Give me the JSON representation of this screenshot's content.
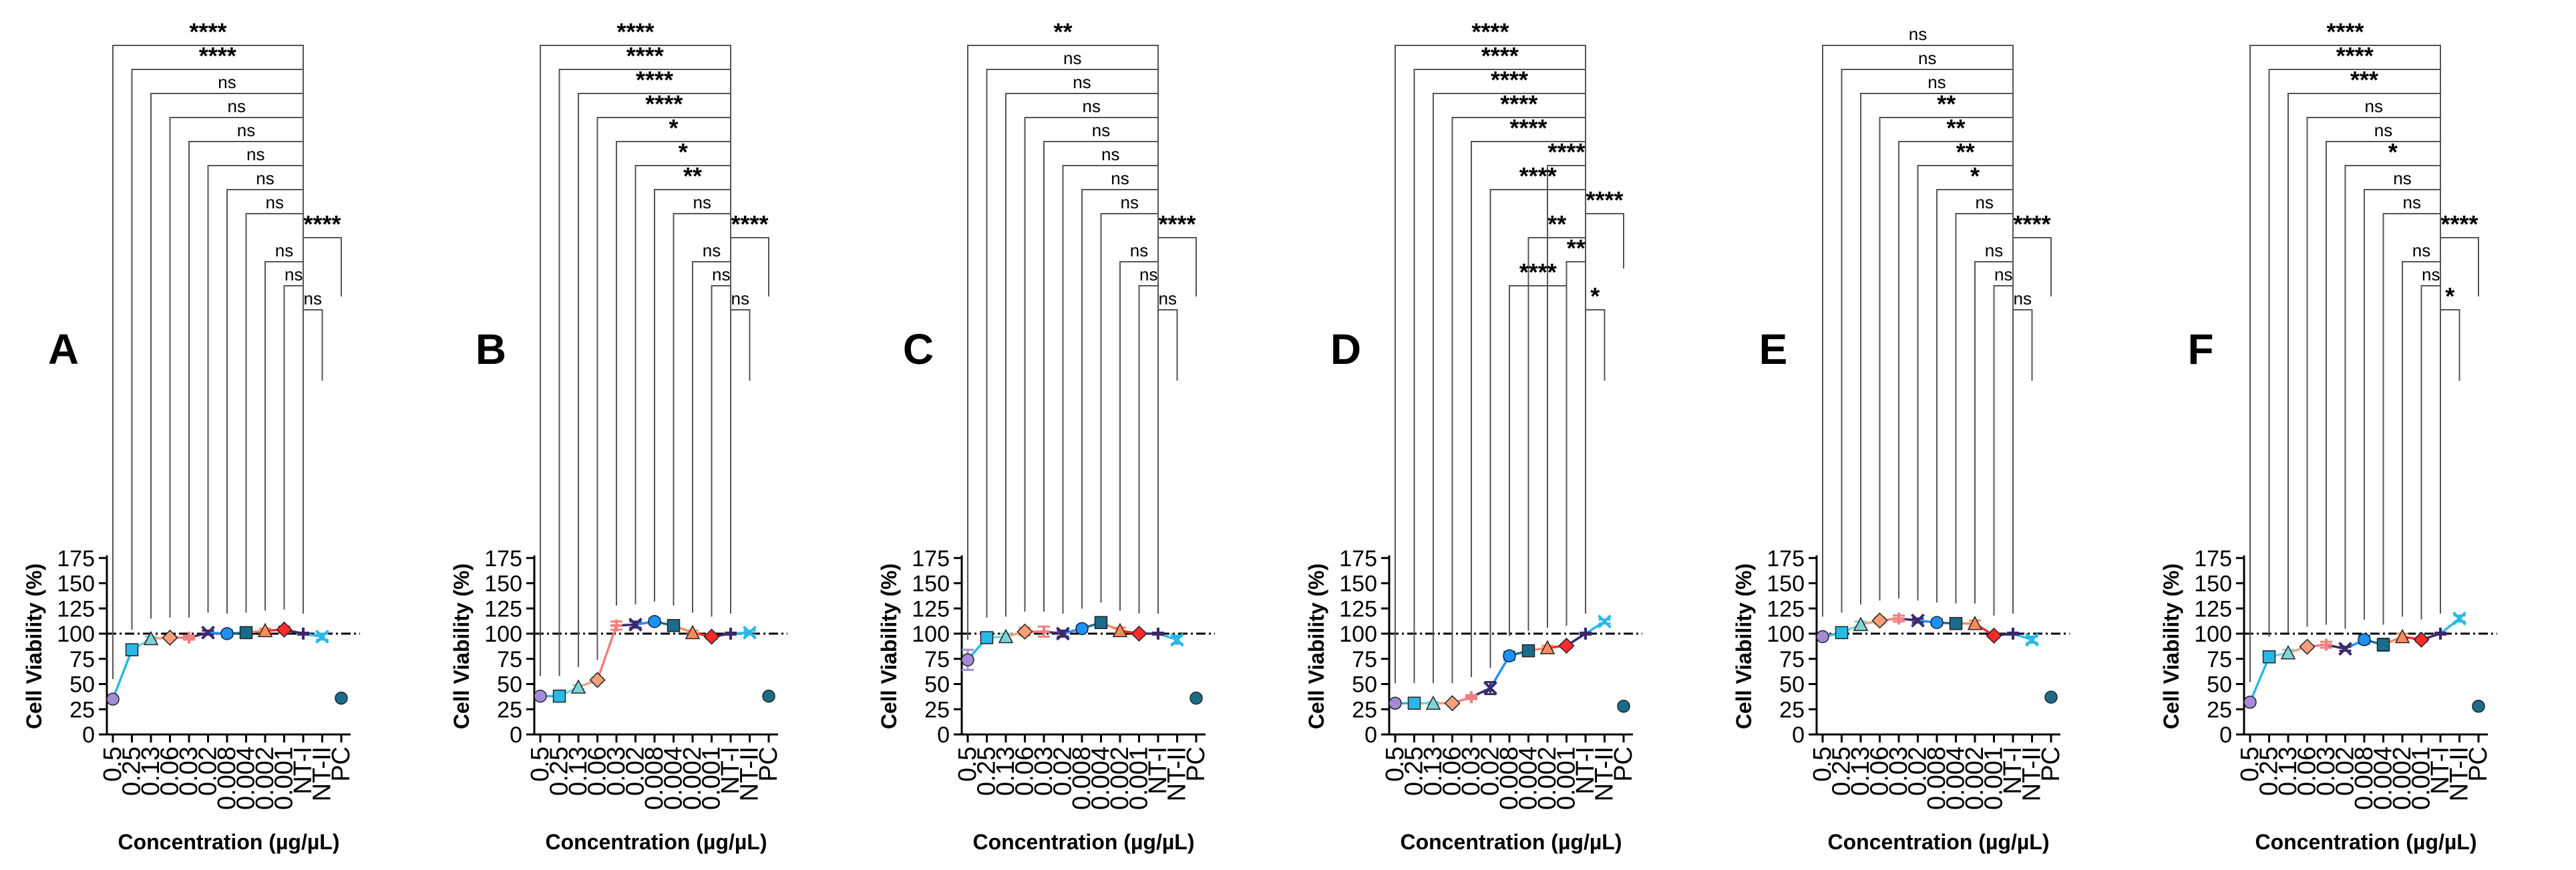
{
  "figure": {
    "panel_letters": [
      "A",
      "B",
      "C",
      "D",
      "E",
      "F"
    ],
    "y_axis_label": "Cell Viability (%)",
    "x_axis_label": "Concentration (µg/µL)",
    "y_ticks": [
      "0",
      "25",
      "50",
      "75",
      "100",
      "125",
      "150",
      "175"
    ],
    "x_tick_labels": [
      "0.5",
      "0.25",
      "0.13",
      "0.06",
      "0.03",
      "0.02",
      "0.008",
      "0.004",
      "0.002",
      "0.001",
      "NT-I",
      "NT-II",
      "PC"
    ],
    "reference_line_value": 100
  },
  "colors": {
    "axis": "#000000",
    "bracket": "#555555",
    "point_colors": [
      "#a48ad8",
      "#29b8e6",
      "#7fd3d6",
      "#f5a07a",
      "#f07f7f",
      "#3b2a6b",
      "#1e90ff",
      "#1a6d8a",
      "#ff8a5c",
      "#ff2a2a",
      "#3b2a6b",
      "#29b8e6",
      "#1a6d8a"
    ]
  },
  "chart_data": [
    {
      "type": "line",
      "panel": "A",
      "categories": [
        "0.5",
        "0.25",
        "0.13",
        "0.06",
        "0.03",
        "0.02",
        "0.008",
        "0.004",
        "0.002",
        "0.001",
        "NT-I",
        "NT-II",
        "PC"
      ],
      "values": [
        35,
        84,
        95,
        96,
        96,
        101,
        100,
        101,
        103,
        104,
        100,
        97,
        36
      ],
      "errors": [
        1,
        5,
        2,
        2,
        2,
        2,
        3,
        2,
        2,
        3,
        1,
        3,
        2
      ],
      "ylim": [
        0,
        175
      ],
      "xlabel": "Concentration (µg/µL)",
      "ylabel": "Cell Viability (%)",
      "reference_line": 100,
      "brackets": [
        {
          "from": "0.5",
          "to": "NT-I",
          "label": "****"
        },
        {
          "from": "0.25",
          "to": "NT-I",
          "label": "****"
        },
        {
          "from": "0.13",
          "to": "NT-I",
          "label": "ns"
        },
        {
          "from": "0.06",
          "to": "NT-I",
          "label": "ns"
        },
        {
          "from": "0.03",
          "to": "NT-I",
          "label": "ns"
        },
        {
          "from": "0.02",
          "to": "NT-I",
          "label": "ns"
        },
        {
          "from": "0.008",
          "to": "NT-I",
          "label": "ns"
        },
        {
          "from": "0.004",
          "to": "NT-I",
          "label": "ns"
        },
        {
          "from": "NT-I",
          "to": "PC",
          "label": "****"
        },
        {
          "from": "0.002",
          "to": "NT-I",
          "label": "ns"
        },
        {
          "from": "0.001",
          "to": "NT-I",
          "label": "ns"
        },
        {
          "from": "NT-I",
          "to": "NT-II",
          "label": "ns"
        }
      ]
    },
    {
      "type": "line",
      "panel": "B",
      "categories": [
        "0.5",
        "0.25",
        "0.13",
        "0.06",
        "0.03",
        "0.02",
        "0.008",
        "0.004",
        "0.002",
        "0.001",
        "NT-I",
        "NT-II",
        "PC"
      ],
      "values": [
        38,
        38,
        47,
        54,
        108,
        109,
        112,
        108,
        101,
        97,
        100,
        101,
        38
      ],
      "errors": [
        1,
        2,
        2,
        2,
        4,
        3,
        3,
        3,
        2,
        2,
        1,
        2,
        2
      ],
      "ylim": [
        0,
        175
      ],
      "xlabel": "Concentration (µg/µL)",
      "ylabel": "Cell Viability (%)",
      "reference_line": 100,
      "brackets": [
        {
          "from": "0.5",
          "to": "NT-I",
          "label": "****"
        },
        {
          "from": "0.25",
          "to": "NT-I",
          "label": "****"
        },
        {
          "from": "0.13",
          "to": "NT-I",
          "label": "****"
        },
        {
          "from": "0.06",
          "to": "NT-I",
          "label": "****"
        },
        {
          "from": "0.03",
          "to": "NT-I",
          "label": "*"
        },
        {
          "from": "0.02",
          "to": "NT-I",
          "label": "*"
        },
        {
          "from": "0.008",
          "to": "NT-I",
          "label": "**"
        },
        {
          "from": "0.004",
          "to": "NT-I",
          "label": "ns"
        },
        {
          "from": "NT-I",
          "to": "PC",
          "label": "****"
        },
        {
          "from": "0.002",
          "to": "NT-I",
          "label": "ns"
        },
        {
          "from": "0.001",
          "to": "NT-I",
          "label": "ns"
        },
        {
          "from": "NT-I",
          "to": "NT-II",
          "label": "ns"
        }
      ]
    },
    {
      "type": "line",
      "panel": "C",
      "categories": [
        "0.5",
        "0.25",
        "0.13",
        "0.06",
        "0.03",
        "0.02",
        "0.008",
        "0.004",
        "0.002",
        "0.001",
        "NT-I",
        "NT-II",
        "PC"
      ],
      "values": [
        74,
        96,
        97,
        102,
        102,
        100,
        105,
        111,
        103,
        100,
        100,
        94,
        36
      ],
      "errors": [
        10,
        3,
        3,
        4,
        5,
        3,
        3,
        4,
        3,
        2,
        1,
        4,
        2
      ],
      "ylim": [
        0,
        175
      ],
      "xlabel": "Concentration (µg/µL)",
      "ylabel": "Cell Viability (%)",
      "reference_line": 100,
      "brackets": [
        {
          "from": "0.5",
          "to": "NT-I",
          "label": "**"
        },
        {
          "from": "0.25",
          "to": "NT-I",
          "label": "ns"
        },
        {
          "from": "0.13",
          "to": "NT-I",
          "label": "ns"
        },
        {
          "from": "0.06",
          "to": "NT-I",
          "label": "ns"
        },
        {
          "from": "0.03",
          "to": "NT-I",
          "label": "ns"
        },
        {
          "from": "0.02",
          "to": "NT-I",
          "label": "ns"
        },
        {
          "from": "0.008",
          "to": "NT-I",
          "label": "ns"
        },
        {
          "from": "0.004",
          "to": "NT-I",
          "label": "ns"
        },
        {
          "from": "NT-I",
          "to": "PC",
          "label": "****"
        },
        {
          "from": "0.002",
          "to": "NT-I",
          "label": "ns"
        },
        {
          "from": "0.001",
          "to": "NT-I",
          "label": "ns"
        },
        {
          "from": "NT-I",
          "to": "NT-II",
          "label": "ns"
        }
      ]
    },
    {
      "type": "line",
      "panel": "D",
      "categories": [
        "0.5",
        "0.25",
        "0.13",
        "0.06",
        "0.03",
        "0.02",
        "0.008",
        "0.004",
        "0.002",
        "0.001",
        "NT-I",
        "NT-II",
        "PC"
      ],
      "values": [
        31,
        31,
        31,
        31,
        37,
        46,
        78,
        83,
        86,
        88,
        100,
        112,
        28
      ],
      "errors": [
        1,
        1,
        1,
        1,
        2,
        6,
        4,
        3,
        2,
        2,
        1,
        2,
        2
      ],
      "ylim": [
        0,
        175
      ],
      "xlabel": "Concentration (µg/µL)",
      "ylabel": "Cell Viability (%)",
      "reference_line": 100,
      "brackets": [
        {
          "from": "0.5",
          "to": "NT-I",
          "label": "****"
        },
        {
          "from": "0.25",
          "to": "NT-I",
          "label": "****"
        },
        {
          "from": "0.13",
          "to": "NT-I",
          "label": "****"
        },
        {
          "from": "0.06",
          "to": "NT-I",
          "label": "****"
        },
        {
          "from": "0.03",
          "to": "NT-I",
          "label": "****"
        },
        {
          "from": "0.002",
          "to": "NT-I",
          "label": "****"
        },
        {
          "from": "0.02",
          "to": "NT-I",
          "label": "****"
        },
        {
          "from": "NT-I",
          "to": "PC",
          "label": "****"
        },
        {
          "from": "0.004",
          "to": "NT-I",
          "label": "**"
        },
        {
          "from": "0.001",
          "to": "NT-I",
          "label": "**"
        },
        {
          "from": "0.008",
          "to": "0.001",
          "label": "****"
        },
        {
          "from": "NT-I",
          "to": "NT-II",
          "label": "*"
        }
      ]
    },
    {
      "type": "line",
      "panel": "E",
      "categories": [
        "0.5",
        "0.25",
        "0.13",
        "0.06",
        "0.03",
        "0.02",
        "0.008",
        "0.004",
        "0.002",
        "0.001",
        "NT-I",
        "NT-II",
        "PC"
      ],
      "values": [
        97,
        101,
        109,
        113,
        115,
        113,
        111,
        110,
        110,
        98,
        100,
        94,
        37
      ],
      "errors": [
        2,
        3,
        3,
        3,
        3,
        2,
        3,
        2,
        3,
        2,
        1,
        3,
        2
      ],
      "ylim": [
        0,
        175
      ],
      "xlabel": "Concentration (µg/µL)",
      "ylabel": "Cell Viability (%)",
      "reference_line": 100,
      "brackets": [
        {
          "from": "0.5",
          "to": "NT-I",
          "label": "ns"
        },
        {
          "from": "0.25",
          "to": "NT-I",
          "label": "ns"
        },
        {
          "from": "0.13",
          "to": "NT-I",
          "label": "ns"
        },
        {
          "from": "0.06",
          "to": "NT-I",
          "label": "**"
        },
        {
          "from": "0.03",
          "to": "NT-I",
          "label": "**"
        },
        {
          "from": "0.02",
          "to": "NT-I",
          "label": "**"
        },
        {
          "from": "0.008",
          "to": "NT-I",
          "label": "*"
        },
        {
          "from": "0.004",
          "to": "NT-I",
          "label": "ns"
        },
        {
          "from": "NT-I",
          "to": "PC",
          "label": "****"
        },
        {
          "from": "0.002",
          "to": "NT-I",
          "label": "ns"
        },
        {
          "from": "0.001",
          "to": "NT-I",
          "label": "ns"
        },
        {
          "from": "NT-I",
          "to": "NT-II",
          "label": "ns"
        }
      ]
    },
    {
      "type": "line",
      "panel": "F",
      "categories": [
        "0.5",
        "0.25",
        "0.13",
        "0.06",
        "0.03",
        "0.02",
        "0.008",
        "0.004",
        "0.002",
        "0.001",
        "NT-I",
        "NT-II",
        "PC"
      ],
      "values": [
        32,
        77,
        81,
        87,
        89,
        85,
        94,
        89,
        97,
        94,
        100,
        115,
        28
      ],
      "errors": [
        1,
        2,
        3,
        2,
        3,
        2,
        4,
        6,
        3,
        2,
        1,
        3,
        2
      ],
      "ylim": [
        0,
        175
      ],
      "xlabel": "Concentration (µg/µL)",
      "ylabel": "Cell Viability (%)",
      "reference_line": 100,
      "brackets": [
        {
          "from": "0.5",
          "to": "NT-I",
          "label": "****"
        },
        {
          "from": "0.25",
          "to": "NT-I",
          "label": "****"
        },
        {
          "from": "0.13",
          "to": "NT-I",
          "label": "***"
        },
        {
          "from": "0.06",
          "to": "NT-I",
          "label": "ns"
        },
        {
          "from": "0.03",
          "to": "NT-I",
          "label": "ns"
        },
        {
          "from": "0.02",
          "to": "NT-I",
          "label": "*"
        },
        {
          "from": "0.008",
          "to": "NT-I",
          "label": "ns"
        },
        {
          "from": "0.004",
          "to": "NT-I",
          "label": "ns"
        },
        {
          "from": "NT-I",
          "to": "PC",
          "label": "****"
        },
        {
          "from": "0.002",
          "to": "NT-I",
          "label": "ns"
        },
        {
          "from": "0.001",
          "to": "NT-I",
          "label": "ns"
        },
        {
          "from": "NT-I",
          "to": "NT-II",
          "label": "*"
        }
      ]
    }
  ]
}
